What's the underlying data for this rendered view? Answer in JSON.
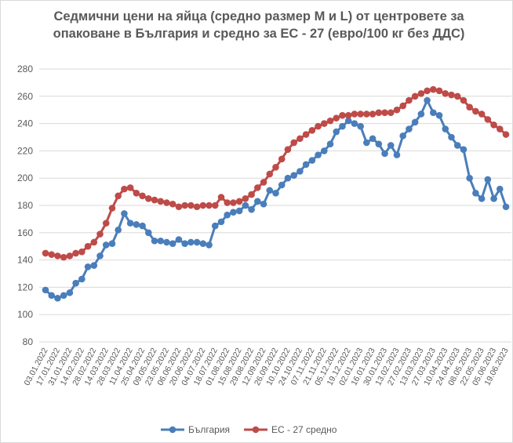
{
  "chart_data": {
    "type": "line",
    "title": "Седмични цени на яйца (средно размер M и L) от центровете за опаковане в България и средно за ЕС - 27 (евро/100 кг без ДДС)",
    "categories": [
      "03.01.2022",
      null,
      "17.01.2022",
      null,
      "31.01.2022",
      null,
      "14.02.2022",
      null,
      "28.02.2022",
      null,
      "14.03.2022",
      null,
      "28.03.2022",
      null,
      "11.04.2022",
      null,
      "25.04.2022",
      null,
      "09.05.2022",
      null,
      "23.05.2022",
      null,
      "06.06.2022",
      null,
      "20.06.2022",
      null,
      "04.07.2022",
      null,
      "18.07.2022",
      null,
      "01.08.2022",
      null,
      "15.08.2022",
      null,
      "29.08.2022",
      null,
      "12.09.2022",
      null,
      "26.09.2022",
      null,
      "10.10.2022",
      null,
      "24.10.2022",
      null,
      "07.11.2022",
      null,
      "21.11.2022",
      null,
      "05.12.2022",
      null,
      "19.12.2022",
      null,
      "02.01.2023",
      null,
      "16.01.2023",
      null,
      "30.01.2023",
      null,
      "13.02.2023",
      null,
      "27.02.2023",
      null,
      "13.03.2023",
      null,
      "27.03.2023",
      null,
      "10.04.2023",
      null,
      "24.04.2023",
      null,
      "08.05.2023",
      null,
      "22.05.2023",
      null,
      "05.06.2023",
      null,
      "19.06.2023"
    ],
    "series": [
      {
        "name": "България",
        "color": "#4a7ebb",
        "values": [
          118,
          114,
          112,
          114,
          116,
          123,
          126,
          135,
          136,
          143,
          151,
          152,
          162,
          174,
          167,
          166,
          165,
          160,
          154,
          154,
          153,
          152,
          155,
          152,
          153,
          153,
          152,
          151,
          165,
          168,
          173,
          175,
          176,
          180,
          177,
          183,
          181,
          191,
          189,
          195,
          200,
          202,
          205,
          210,
          213,
          217,
          220,
          225,
          234,
          238,
          242,
          240,
          238,
          226,
          229,
          225,
          218,
          224,
          217,
          231,
          236,
          241,
          247,
          257,
          248,
          246,
          236,
          230,
          224,
          221,
          200,
          189,
          185,
          199,
          185,
          192,
          179
        ]
      },
      {
        "name": "ЕС - 27 средно",
        "color": "#be4b48",
        "values": [
          145,
          144,
          143,
          142,
          143,
          145,
          146,
          150,
          153,
          159,
          167,
          178,
          187,
          192,
          193,
          189,
          187,
          185,
          184,
          183,
          182,
          181,
          179,
          180,
          180,
          179,
          180,
          180,
          180,
          186,
          182,
          182,
          183,
          185,
          188,
          193,
          197,
          203,
          208,
          214,
          221,
          226,
          229,
          232,
          235,
          238,
          240,
          242,
          244,
          246,
          246,
          247,
          247,
          247,
          247,
          248,
          248,
          248,
          250,
          253,
          257,
          260,
          262,
          264,
          265,
          264,
          262,
          261,
          260,
          257,
          252,
          249,
          247,
          243,
          239,
          236,
          232
        ]
      }
    ],
    "ylim": [
      80,
      280
    ],
    "yticks": [
      80,
      100,
      120,
      140,
      160,
      180,
      200,
      220,
      240,
      260,
      280
    ],
    "grid": true,
    "legend": "bottom"
  }
}
